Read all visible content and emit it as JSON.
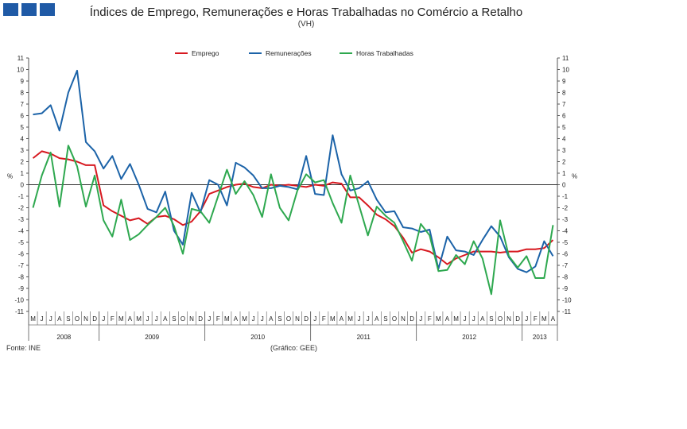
{
  "logo": {
    "icon": "ine-logo-blocks",
    "color": "#1f5aa6"
  },
  "header": {
    "title": "Índices de Emprego, Remunerações e Horas Trabalhadas no Comércio a Retalho",
    "subtitle": "(VH)"
  },
  "footer": {
    "source": "Fonte: INE",
    "credit": "(Gráfico: GEE)"
  },
  "chart_data": {
    "type": "line",
    "title": "Índices de Emprego, Remunerações e Horas Trabalhadas no Comércio a Retalho",
    "subtitle": "(VH)",
    "ylabel": "%",
    "ylabel_right": "%",
    "ylim": [
      -11,
      11
    ],
    "yticks": [
      11,
      10,
      9,
      8,
      7,
      6,
      5,
      4,
      3,
      2,
      1,
      0,
      -1,
      -2,
      -3,
      -4,
      -5,
      -6,
      -7,
      -8,
      -9,
      -10,
      -11
    ],
    "grid": false,
    "legend": "top-center",
    "months": [
      "M",
      "J",
      "J",
      "A",
      "S",
      "O",
      "N",
      "D",
      "J",
      "F",
      "M",
      "A",
      "M",
      "J",
      "J",
      "A",
      "S",
      "O",
      "N",
      "D",
      "J",
      "F",
      "M",
      "A",
      "M",
      "J",
      "J",
      "A",
      "S",
      "O",
      "N",
      "D",
      "J",
      "F",
      "M",
      "A",
      "M",
      "J",
      "J",
      "A",
      "S",
      "O",
      "N",
      "D",
      "J",
      "F",
      "M",
      "A",
      "M",
      "J",
      "J",
      "A",
      "S",
      "O",
      "N",
      "D",
      "J",
      "F",
      "M",
      "A"
    ],
    "years": [
      {
        "label": "2008",
        "start": 0,
        "end": 8
      },
      {
        "label": "2009",
        "start": 8,
        "end": 20
      },
      {
        "label": "2010",
        "start": 20,
        "end": 32
      },
      {
        "label": "2011",
        "start": 32,
        "end": 44
      },
      {
        "label": "2012",
        "start": 44,
        "end": 56
      },
      {
        "label": "2013",
        "start": 56,
        "end": 60
      }
    ],
    "series": [
      {
        "name": "Emprego",
        "color": "#d71920",
        "values": [
          2.3,
          2.9,
          2.7,
          2.3,
          2.2,
          2.0,
          1.7,
          1.7,
          -1.8,
          -2.3,
          -2.7,
          -3.1,
          -2.9,
          -3.4,
          -2.8,
          -2.7,
          -3.0,
          -3.5,
          -3.2,
          -2.3,
          -0.8,
          -0.5,
          -0.2,
          0.0,
          0.1,
          -0.2,
          -0.3,
          0.0,
          -0.1,
          0.0,
          -0.1,
          -0.2,
          0.0,
          -0.1,
          0.2,
          0.1,
          -1.1,
          -1.1,
          -1.8,
          -2.6,
          -3.0,
          -3.6,
          -4.6,
          -5.9,
          -5.6,
          -5.8,
          -6.3,
          -6.9,
          -6.4,
          -6.1,
          -5.8,
          -5.8,
          -5.8,
          -5.9,
          -5.8,
          -5.8,
          -5.6,
          -5.6,
          -5.5,
          -4.8
        ]
      },
      {
        "name": "Remunerações",
        "color": "#1c63a8",
        "values": [
          6.1,
          6.2,
          6.9,
          4.7,
          8.0,
          9.9,
          3.7,
          2.9,
          1.4,
          2.5,
          0.5,
          1.8,
          0.0,
          -2.1,
          -2.4,
          -0.6,
          -4.0,
          -5.2,
          -0.7,
          -2.4,
          0.4,
          0.0,
          -1.8,
          1.9,
          1.5,
          0.8,
          -0.3,
          -0.3,
          -0.1,
          -0.2,
          -0.4,
          2.5,
          -0.8,
          -0.9,
          4.3,
          0.9,
          -0.5,
          -0.3,
          0.3,
          -1.3,
          -2.4,
          -2.3,
          -3.7,
          -3.8,
          -4.1,
          -3.9,
          -7.3,
          -4.5,
          -5.7,
          -5.8,
          -6.1,
          -4.8,
          -3.6,
          -4.5,
          -6.3,
          -7.3,
          -7.6,
          -7.1,
          -4.9,
          -6.2
        ]
      },
      {
        "name": "Horas Trabalhadas",
        "color": "#2ea84f",
        "values": [
          -2.0,
          0.8,
          2.8,
          -1.9,
          3.4,
          1.6,
          -1.9,
          0.8,
          -3.1,
          -4.5,
          -1.3,
          -4.8,
          -4.3,
          -3.5,
          -2.8,
          -2.0,
          -3.6,
          -6.0,
          -2.1,
          -2.3,
          -3.3,
          -1.0,
          1.3,
          -0.8,
          0.3,
          -0.9,
          -2.8,
          0.9,
          -2.0,
          -3.1,
          -0.5,
          0.9,
          0.2,
          0.4,
          -1.6,
          -3.3,
          0.8,
          -1.8,
          -4.4,
          -1.9,
          -2.7,
          -3.3,
          -4.9,
          -6.6,
          -3.4,
          -4.4,
          -7.5,
          -7.4,
          -6.1,
          -6.9,
          -4.9,
          -6.4,
          -9.5,
          -3.1,
          -6.2,
          -7.2,
          -6.2,
          -8.1,
          -8.1,
          -3.5
        ]
      }
    ]
  }
}
